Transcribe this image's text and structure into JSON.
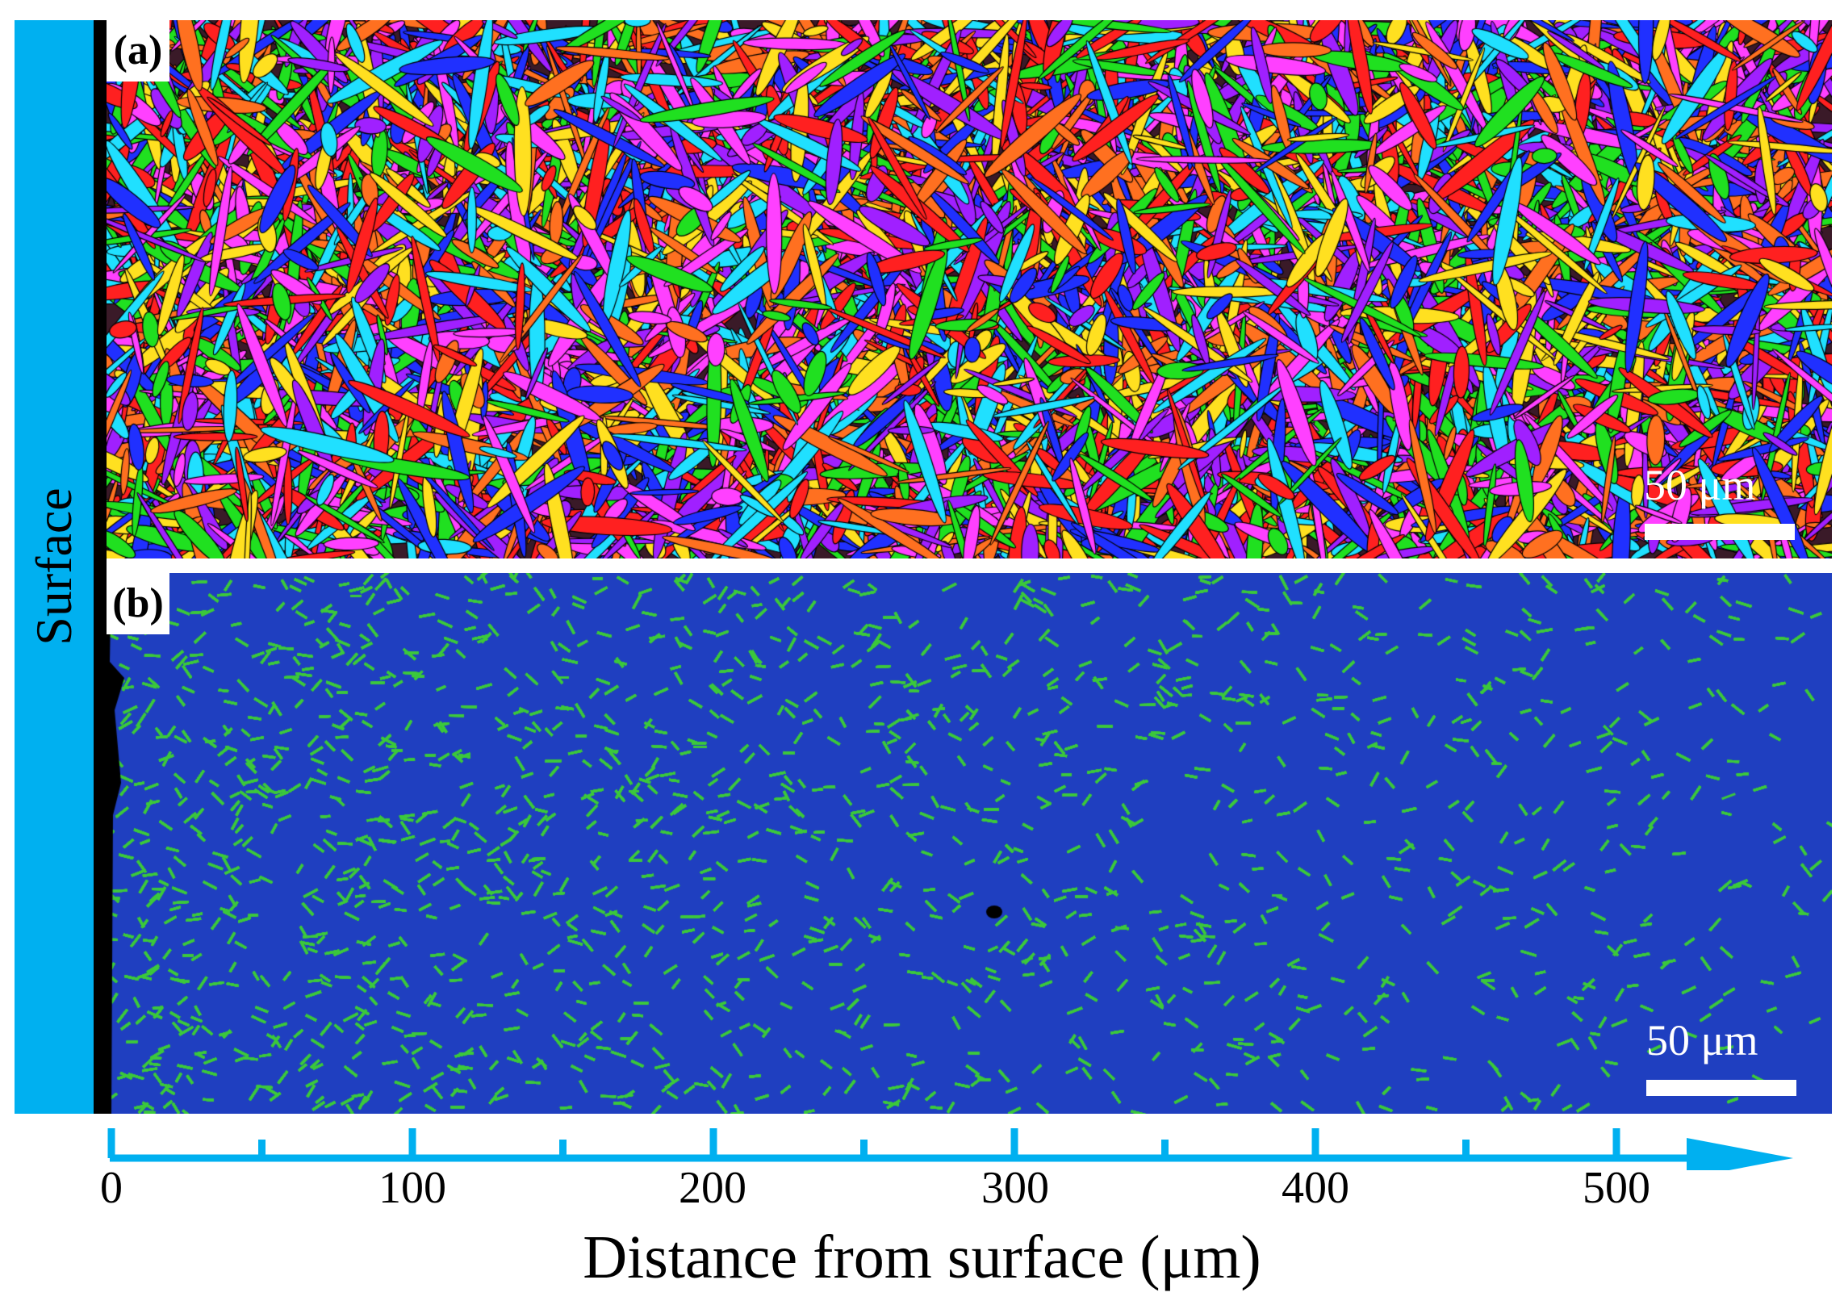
{
  "figure": {
    "side_label": "Surface",
    "panels": [
      {
        "tag": "(a)",
        "map_type": "inverse pole figure orientation map",
        "scale_bar": "50 μm"
      },
      {
        "tag": "(b)",
        "map_type": "phase map",
        "scale_bar": "50 μm"
      }
    ],
    "axis": {
      "title": "Distance from surface (μm)",
      "tick_labels": [
        "0",
        "100",
        "200",
        "300",
        "400",
        "500"
      ],
      "arrow_color": "#00b0f0"
    },
    "colors": {
      "surface_bar": "#00b0f0",
      "phase_map_primary": "#1f3fc0",
      "phase_map_secondary": "#3cc83c",
      "ipf_palette": [
        "#ff2020",
        "#20e020",
        "#2030ff",
        "#ff40ff",
        "#20e0ff",
        "#ffe020",
        "#ff7020",
        "#a020ff"
      ]
    }
  }
}
